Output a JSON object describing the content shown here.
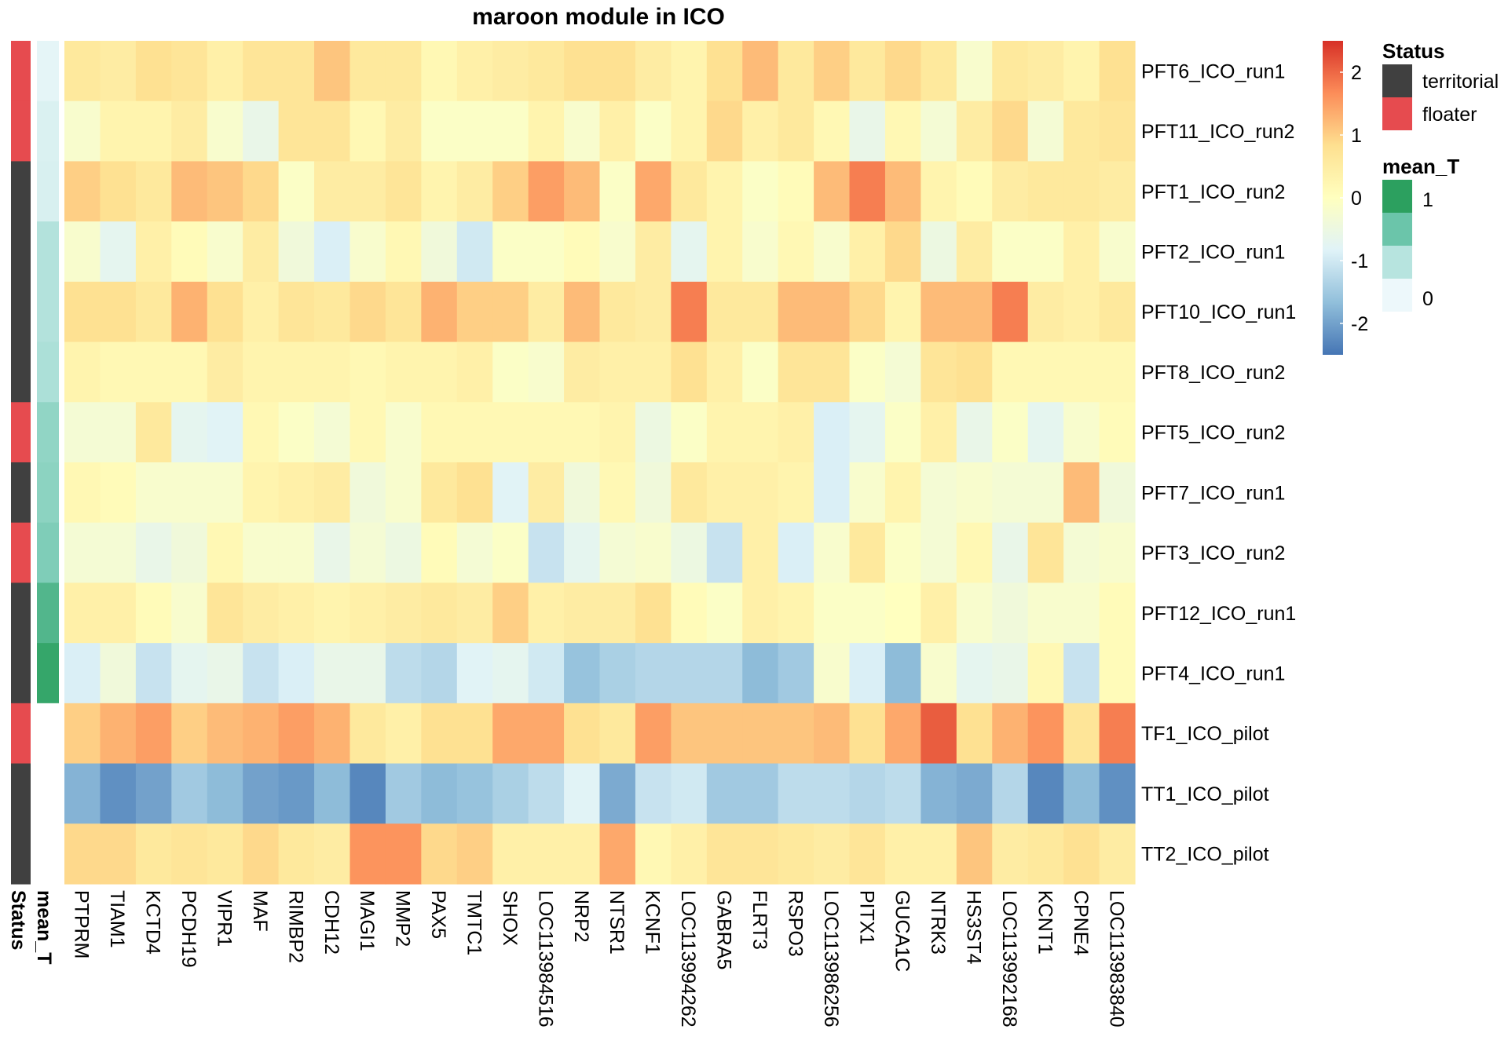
{
  "chart_data": {
    "type": "heatmap",
    "title": "maroon module in ICO",
    "rows": [
      "PFT6_ICO_run1",
      "PFT11_ICO_run2",
      "PFT1_ICO_run2",
      "PFT2_ICO_run1",
      "PFT10_ICO_run1",
      "PFT8_ICO_run2",
      "PFT5_ICO_run2",
      "PFT7_ICO_run1",
      "PFT3_ICO_run2",
      "PFT12_ICO_run1",
      "PFT4_ICO_run1",
      "TF1_ICO_pilot",
      "TT1_ICO_pilot",
      "TT2_ICO_pilot"
    ],
    "columns": [
      "PTPRM",
      "TIAM1",
      "KCTD4",
      "PCDH19",
      "VIPR1",
      "MAF",
      "RIMBP2",
      "CDH12",
      "MAGI1",
      "MMP2",
      "PAX5",
      "TMTC1",
      "SHOX",
      "LOC113984516",
      "NRP2",
      "NTSR1",
      "KCNF1",
      "LOC113994262",
      "GABRA5",
      "FLRT3",
      "RSPO3",
      "LOC113986256",
      "PITX1",
      "GUCA1C",
      "NTRK3",
      "HS3ST4",
      "LOC113992168",
      "KCNT1",
      "CPNE4",
      "LOC113983840"
    ],
    "values": [
      [
        0.6,
        0.5,
        0.8,
        0.7,
        0.4,
        0.7,
        0.7,
        1.1,
        0.6,
        0.6,
        0.2,
        0.4,
        0.5,
        0.6,
        0.8,
        0.8,
        0.5,
        0.3,
        0.8,
        1.2,
        0.6,
        1.0,
        0.6,
        0.9,
        0.6,
        -0.2,
        0.6,
        0.5,
        0.3,
        0.8
      ],
      [
        -0.2,
        0.3,
        0.3,
        0.5,
        -0.2,
        -0.6,
        0.7,
        0.7,
        0.2,
        0.5,
        -0.1,
        -0.1,
        -0.1,
        0.3,
        -0.2,
        0.4,
        -0.1,
        0.3,
        0.9,
        0.4,
        0.6,
        0.2,
        -0.6,
        0.2,
        -0.3,
        0.5,
        0.9,
        -0.3,
        0.6,
        0.7
      ],
      [
        1.0,
        0.8,
        0.6,
        1.2,
        1.1,
        0.9,
        -0.1,
        0.5,
        0.5,
        0.7,
        0.3,
        0.5,
        1.0,
        1.5,
        1.2,
        -0.1,
        1.4,
        0.6,
        0.3,
        -0.1,
        0.1,
        1.2,
        1.8,
        1.2,
        0.3,
        0.1,
        0.5,
        0.6,
        0.6,
        0.5
      ],
      [
        -0.2,
        -0.7,
        0.4,
        0.1,
        -0.2,
        0.5,
        -0.4,
        -0.9,
        -0.2,
        0.2,
        -0.4,
        -1.0,
        -0.1,
        -0.1,
        0.1,
        -0.2,
        0.5,
        -0.7,
        0.3,
        -0.2,
        0.2,
        -0.2,
        0.4,
        0.9,
        -0.5,
        0.5,
        -0.1,
        -0.1,
        0.4,
        -0.2
      ],
      [
        0.8,
        0.8,
        0.6,
        1.3,
        0.8,
        0.4,
        0.7,
        0.6,
        0.9,
        0.7,
        1.3,
        1.0,
        1.0,
        0.5,
        1.2,
        0.6,
        0.5,
        1.8,
        0.6,
        0.6,
        1.2,
        1.2,
        0.9,
        0.3,
        1.2,
        1.2,
        1.8,
        0.5,
        0.4,
        0.6
      ],
      [
        0.3,
        0.2,
        0.2,
        0.2,
        0.5,
        0.3,
        0.3,
        0.3,
        0.2,
        0.3,
        0.3,
        0.4,
        -0.1,
        -0.2,
        0.5,
        0.4,
        0.4,
        0.8,
        0.4,
        -0.1,
        0.7,
        0.7,
        -0.1,
        -0.3,
        0.7,
        0.8,
        0.2,
        0.2,
        0.2,
        0.2
      ],
      [
        -0.3,
        -0.3,
        0.6,
        -0.7,
        -0.8,
        0.2,
        -0.1,
        -0.3,
        0.2,
        -0.2,
        0.2,
        0.2,
        0.2,
        0.2,
        0.2,
        0.3,
        -0.5,
        -0.1,
        0.3,
        0.3,
        0.4,
        -0.9,
        -0.7,
        -0.1,
        0.4,
        -0.6,
        -0.1,
        -0.7,
        -0.2,
        0.1
      ],
      [
        0.2,
        0.1,
        -0.2,
        -0.2,
        -0.2,
        0.3,
        0.4,
        0.5,
        -0.4,
        -0.2,
        0.6,
        0.8,
        -0.8,
        0.5,
        -0.4,
        0.2,
        -0.4,
        0.6,
        0.4,
        0.4,
        0.3,
        -0.9,
        -0.2,
        0.3,
        -0.3,
        -0.2,
        -0.3,
        -0.3,
        1.2,
        -0.4
      ],
      [
        -0.3,
        -0.3,
        -0.6,
        -0.4,
        0.2,
        -0.2,
        -0.2,
        -0.6,
        -0.3,
        -0.5,
        0.1,
        -0.3,
        -0.1,
        -1.1,
        -0.7,
        -0.3,
        -0.2,
        -0.5,
        -1.1,
        0.4,
        -0.9,
        -0.2,
        0.6,
        -0.1,
        -0.3,
        0.2,
        -0.6,
        0.7,
        -0.3,
        -0.2
      ],
      [
        0.4,
        0.4,
        0.1,
        -0.2,
        0.7,
        0.5,
        0.4,
        0.3,
        0.4,
        0.5,
        0.6,
        0.5,
        1.0,
        0.4,
        0.5,
        0.5,
        0.8,
        0.1,
        -0.1,
        0.4,
        0.3,
        -0.1,
        -0.1,
        0.0,
        0.4,
        -0.2,
        -0.4,
        -0.2,
        -0.2,
        0.1
      ],
      [
        -0.9,
        -0.4,
        -1.1,
        -0.7,
        -0.6,
        -1.1,
        -0.9,
        -0.6,
        -0.6,
        -1.2,
        -1.3,
        -0.8,
        -0.7,
        -1.0,
        -1.6,
        -1.4,
        -1.3,
        -1.3,
        -1.3,
        -1.7,
        -1.5,
        -0.2,
        -0.9,
        -1.7,
        -0.2,
        -0.7,
        -0.6,
        0.2,
        -1.1,
        0.1
      ],
      [
        1.0,
        1.3,
        1.5,
        1.0,
        1.2,
        1.3,
        1.5,
        1.3,
        0.6,
        0.4,
        0.8,
        0.8,
        1.4,
        1.4,
        0.8,
        0.6,
        1.5,
        1.1,
        1.1,
        1.1,
        1.1,
        1.2,
        0.8,
        1.4,
        2.1,
        0.8,
        1.3,
        1.6,
        0.7,
        1.8
      ],
      [
        -1.8,
        -2.2,
        -2.0,
        -1.5,
        -1.7,
        -2.0,
        -2.1,
        -1.7,
        -2.3,
        -1.5,
        -1.7,
        -1.6,
        -1.4,
        -1.2,
        -0.8,
        -1.9,
        -1.1,
        -1.0,
        -1.5,
        -1.5,
        -1.2,
        -1.2,
        -1.3,
        -1.2,
        -1.8,
        -1.9,
        -1.3,
        -2.3,
        -1.7,
        -2.2
      ],
      [
        0.9,
        0.9,
        0.6,
        0.7,
        0.6,
        0.9,
        0.6,
        0.5,
        1.6,
        1.6,
        0.9,
        1.0,
        0.4,
        0.4,
        0.4,
        1.4,
        0.2,
        0.4,
        0.7,
        0.7,
        0.6,
        0.5,
        0.7,
        0.4,
        0.4,
        1.1,
        0.5,
        0.6,
        0.8,
        0.5
      ]
    ],
    "zlim": [
      -2.5,
      2.5
    ],
    "colorbar": {
      "ticks": [
        "2",
        "1",
        "0",
        "-1",
        "-2"
      ],
      "tick_values": [
        2,
        1,
        0,
        -1,
        -2
      ],
      "colors": [
        "#4575b4",
        "#91bfdb",
        "#e0f3f8",
        "#ffffbf",
        "#fee090",
        "#fc8d59",
        "#d73027"
      ]
    },
    "status": [
      "floater",
      "floater",
      "territorial",
      "territorial",
      "territorial",
      "territorial",
      "floater",
      "territorial",
      "floater",
      "territorial",
      "territorial",
      "floater",
      "territorial",
      "territorial"
    ],
    "mean_T": [
      0.05,
      0.12,
      0.13,
      0.35,
      0.35,
      0.38,
      0.5,
      0.52,
      0.58,
      0.8,
      0.95,
      null,
      null,
      null
    ],
    "annotation_labels": {
      "status": "Status",
      "mean_T": "mean_T"
    },
    "legend": {
      "status_title": "Status",
      "status_items": [
        {
          "label": "territorial",
          "color": "#404040"
        },
        {
          "label": "floater",
          "color": "#e64b4f"
        }
      ],
      "meanT_title": "mean_T",
      "meanT_ticks": [
        "1",
        "0"
      ],
      "meanT_colors": [
        "#2ca05f",
        "#6bc5aa",
        "#b7e4df",
        "#edf8fb"
      ]
    }
  }
}
